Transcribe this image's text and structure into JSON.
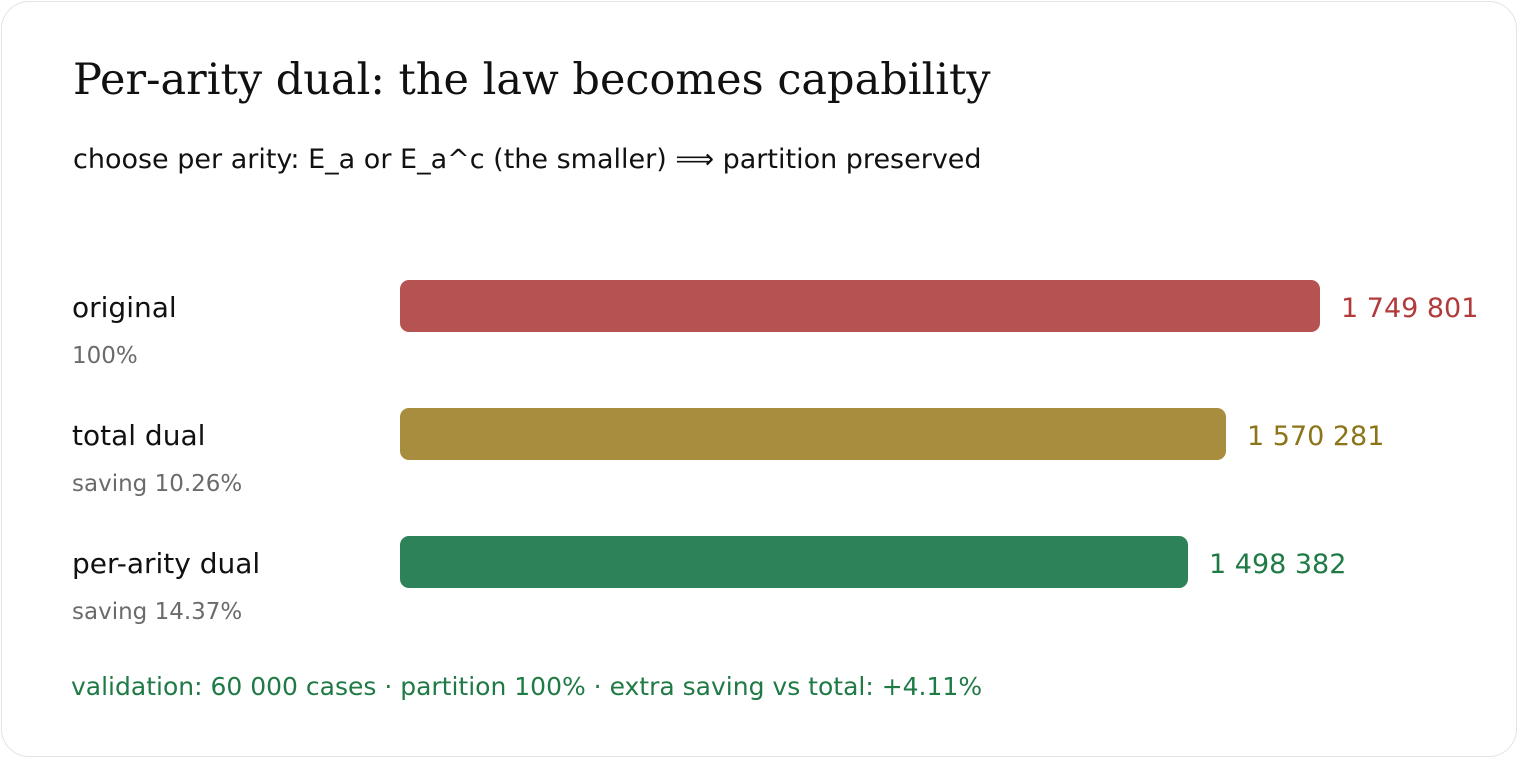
{
  "header": {
    "title": "Per-arity dual: the law becomes capability",
    "subtitle": "choose per arity: E_a or E_a^c (the smaller) ⟹ partition preserved"
  },
  "footer": {
    "validation": "validation: 60 000 cases · partition 100% · extra saving vs total: +4.11%",
    "validation_color": "#1f7a45"
  },
  "chart_data": {
    "type": "bar",
    "orientation": "horizontal",
    "title": "Per-arity dual: the law becomes capability",
    "subtitle": "choose per arity: E_a or E_a^c (the smaller) ⟹ partition preserved",
    "xlabel": "",
    "ylabel": "",
    "xlim": [
      0,
      1749801
    ],
    "grid": false,
    "categories": [
      "original",
      "total dual",
      "per-arity dual"
    ],
    "sublabels": [
      "100%",
      "saving 10.26%",
      "saving 14.37%"
    ],
    "values": [
      1749801,
      1570281,
      1498382
    ],
    "value_labels": [
      "1 749 801",
      "1 570 281",
      "1 498 382"
    ],
    "bar_colors": [
      "#b55252",
      "#a88d3e",
      "#2e8259"
    ],
    "value_label_colors": [
      "#b23a3a",
      "#8c7418",
      "#1f7a45"
    ]
  }
}
